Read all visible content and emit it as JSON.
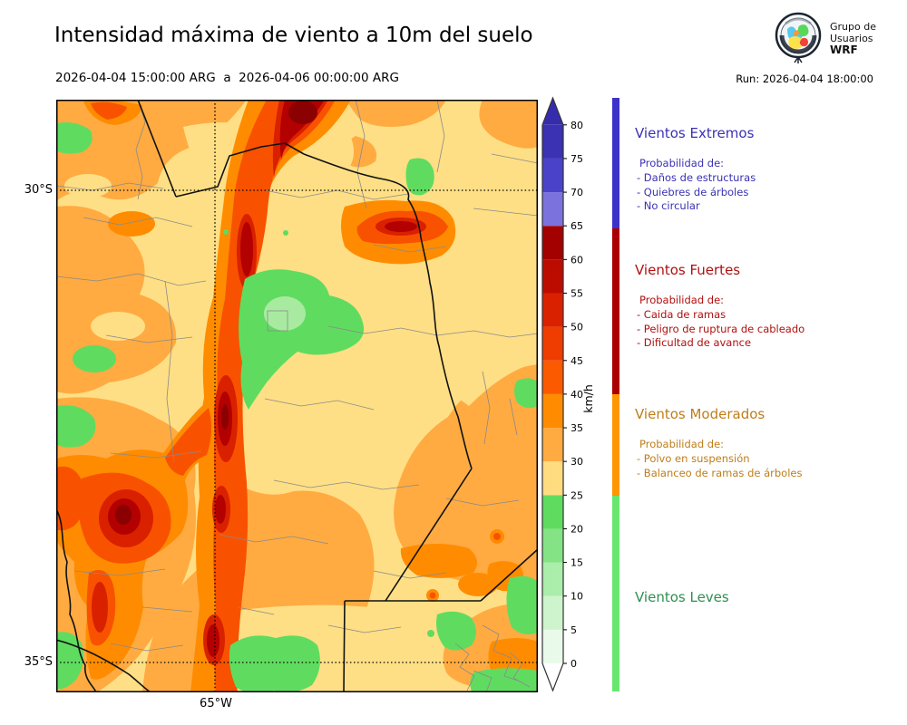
{
  "header": {
    "title": "Intensidad máxima de viento a 10m del suelo",
    "date_range": "2026-04-04 15:00:00 ARG  a  2026-04-06 00:00:00 ARG",
    "run_label": "Run: 2026-04-04 18:00:00",
    "logo": {
      "line1": "Grupo de",
      "line2": "Usuarios",
      "line3": "WRF",
      "icon": "wrf-globe-emblem"
    }
  },
  "map": {
    "axis": {
      "lat_top": "30°S",
      "lat_bottom": "35°S",
      "lon": "65°W"
    }
  },
  "colorbar": {
    "unit": "km/h",
    "tick_values": [
      0,
      5,
      10,
      15,
      20,
      25,
      30,
      35,
      40,
      45,
      50,
      55,
      60,
      65,
      70,
      75,
      80
    ],
    "levels": [
      {
        "from": 0,
        "to": 5,
        "color": "#EAFAEA"
      },
      {
        "from": 5,
        "to": 10,
        "color": "#CDF4CD"
      },
      {
        "from": 10,
        "to": 15,
        "color": "#ABEDAB"
      },
      {
        "from": 15,
        "to": 20,
        "color": "#84E384"
      },
      {
        "from": 20,
        "to": 25,
        "color": "#5FDC5F"
      },
      {
        "from": 25,
        "to": 30,
        "color": "#FFDC80"
      },
      {
        "from": 30,
        "to": 35,
        "color": "#FFAB42"
      },
      {
        "from": 35,
        "to": 40,
        "color": "#FF8C00"
      },
      {
        "from": 40,
        "to": 45,
        "color": "#FB5A00"
      },
      {
        "from": 45,
        "to": 50,
        "color": "#EF3C00"
      },
      {
        "from": 50,
        "to": 55,
        "color": "#D92100"
      },
      {
        "from": 55,
        "to": 60,
        "color": "#BC0C00"
      },
      {
        "from": 60,
        "to": 65,
        "color": "#A30000"
      },
      {
        "from": 65,
        "to": 70,
        "color": "#7C72DE"
      },
      {
        "from": 70,
        "to": 75,
        "color": "#4B42CA"
      },
      {
        "from": 75,
        "to": 80,
        "color": "#3A31B3"
      }
    ],
    "over_color": "#352CAD",
    "under_color": "#FFFFFF"
  },
  "legend": {
    "categories": [
      {
        "name": "Vientos Extremos",
        "color": "#3A31B4",
        "bar_color": "#3C31C8",
        "prob_label": "Probabilidad de:",
        "items": [
          "- Daños de estructuras",
          "- Quiebres de árboles",
          "- No circular"
        ]
      },
      {
        "name": "Vientos Fuertes",
        "color": "#B01010",
        "bar_color": "#AA0000",
        "prob_label": "Probabilidad de:",
        "items": [
          "- Caida de ramas",
          "- Peligro de ruptura de cableado",
          "- Dificultad de avance"
        ]
      },
      {
        "name": "Vientos Moderados",
        "color": "#BF7D1A",
        "bar_color": "#FF9600",
        "prob_label": "Probabilidad de:",
        "items": [
          "- Polvo en suspensión",
          "- Balanceo de ramas de árboles"
        ]
      },
      {
        "name": "Vientos Leves",
        "color": "#2F8F4F",
        "bar_color": "#69E66E",
        "prob_label": "",
        "items": []
      }
    ]
  }
}
